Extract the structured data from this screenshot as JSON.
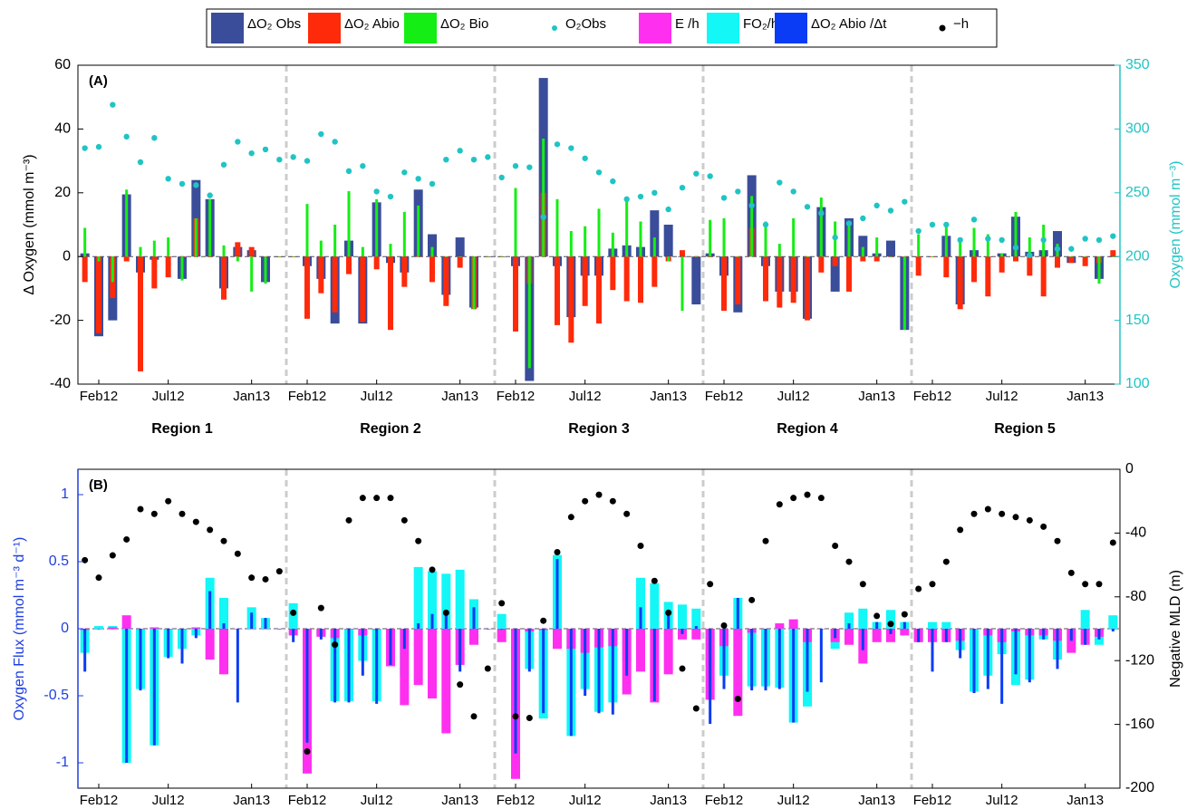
{
  "legend": {
    "items": [
      {
        "key": "dO2_obs",
        "label": "ΔO₂ Obs",
        "marker": "box",
        "color": "#3a4d9a"
      },
      {
        "key": "dO2_abio",
        "label": "ΔO₂ Abio",
        "marker": "box",
        "color": "#ff2a0a"
      },
      {
        "key": "dO2_bio",
        "label": "ΔO₂ Bio",
        "marker": "box",
        "color": "#14ee14"
      },
      {
        "key": "o2_obs",
        "label": "O₂Obs",
        "marker": "dot",
        "color": "#20c4c4"
      },
      {
        "key": "e_h",
        "label": "E /h",
        "marker": "box",
        "color": "#ff2ff0"
      },
      {
        "key": "fo2_h",
        "label": "FO₂/h",
        "marker": "box",
        "color": "#13f7f7"
      },
      {
        "key": "dabio_dt",
        "label": "ΔO₂ Abio /Δt",
        "marker": "box",
        "color": "#0a3cf5"
      },
      {
        "key": "neg_h",
        "label": "−h",
        "marker": "dot",
        "color": "#000000"
      }
    ]
  },
  "colors": {
    "obs": "#3a4d9a",
    "abio": "#ff2a0a",
    "bio": "#14ee14",
    "o2dot": "#20c4c4",
    "e_h": "#ff2ff0",
    "fo2": "#13f7f7",
    "dabio": "#0a3cf5",
    "flux_light": "#1fb0f0",
    "mld": "#000000",
    "left_axis_B": "#1f3fe0",
    "right_axis_A": "#20c4c4",
    "divider": "#cccccc"
  },
  "chart_data": [
    {
      "type": "bar",
      "panel_label": "(A)",
      "ylabel": "Δ Oxygen (mmol m⁻³)",
      "ylim": [
        -40,
        60
      ],
      "yticks": [
        -40,
        -20,
        0,
        20,
        40,
        60
      ],
      "y2label": "Oxygen (mmol m⁻³)",
      "y2lim": [
        100,
        350
      ],
      "y2ticks": [
        100,
        150,
        200,
        250,
        300,
        350
      ],
      "regions": [
        "Region 1",
        "Region 2",
        "Region 3",
        "Region 4",
        "Region 5"
      ],
      "month_ticks": [
        "Feb12",
        "Jul12",
        "Jan13"
      ],
      "months_per_region": 15,
      "series": [
        {
          "name": "ΔO₂ Obs",
          "regions": [
            [
              1,
              -25,
              -20,
              19.5,
              -5,
              -1,
              0,
              -7,
              24,
              18,
              -10,
              3,
              2,
              -8,
              0
            ],
            [
              0,
              -3,
              -7,
              -21,
              5,
              -21,
              17,
              -2,
              -5,
              21,
              7,
              -12,
              6,
              -16,
              0
            ],
            [
              0,
              -3,
              -39,
              56,
              -3,
              -19,
              -6,
              -6,
              2.5,
              3.5,
              3,
              14.5,
              10,
              0,
              -15
            ],
            [
              1,
              -6,
              -17.5,
              25.5,
              -3,
              -11,
              -11,
              -19.5,
              15.5,
              -11,
              12,
              6.5,
              1,
              5,
              -23
            ],
            [
              0,
              0,
              6.5,
              -15,
              2,
              0,
              1,
              12.5,
              1.5,
              2,
              8,
              -2,
              0,
              -7,
              0
            ]
          ]
        },
        {
          "name": "ΔO₂ Abio",
          "regions": [
            [
              -8,
              -24,
              -13,
              -1.5,
              -36,
              -10,
              -6.5,
              0,
              12,
              0,
              -13.5,
              4.5,
              3,
              0,
              0
            ],
            [
              0,
              -19.5,
              -11.5,
              -17.5,
              -5.5,
              -20.5,
              -4,
              -23,
              -9.5,
              0,
              -8,
              -15.5,
              -3.5,
              -16.5,
              0
            ],
            [
              0,
              -23.5,
              -8.5,
              20,
              -21.5,
              -27,
              -15.5,
              -21,
              -10.5,
              -14,
              -14.5,
              -9.5,
              -1.5,
              2,
              0
            ],
            [
              0,
              -17,
              -15,
              9,
              -14,
              -16,
              -14.5,
              -20,
              -5,
              -3,
              -11,
              -1.5,
              -1.5,
              0,
              0
            ],
            [
              -6,
              0,
              -6.5,
              -16.5,
              -8,
              -12.5,
              -5,
              -1.5,
              -6,
              -12.5,
              -3.5,
              -2,
              -3,
              -2,
              2
            ]
          ]
        },
        {
          "name": "ΔO₂ Bio",
          "regions": [
            [
              9,
              -1.5,
              -8,
              21,
              3,
              5,
              6,
              -7.5,
              12,
              18,
              3.5,
              -1.5,
              -11,
              -8.5,
              0
            ],
            [
              0,
              16.5,
              5,
              10,
              20.5,
              3,
              18,
              4,
              14,
              16,
              3,
              0,
              0,
              -16.5,
              0
            ],
            [
              0,
              21.5,
              -35,
              37,
              18,
              8,
              9.5,
              15,
              7.5,
              17.5,
              11,
              6,
              -1.5,
              -17,
              0
            ],
            [
              11.5,
              12,
              0,
              19,
              11,
              4,
              12,
              0,
              18.5,
              11,
              10,
              3,
              6,
              0,
              -23
            ],
            [
              7,
              0,
              10,
              5,
              9,
              7,
              1,
              14,
              6,
              10,
              4,
              0,
              0,
              -8.5,
              0
            ]
          ]
        },
        {
          "name": "O₂Obs",
          "axis": "right",
          "regions": [
            [
              285,
              286,
              319,
              294,
              274,
              293,
              261,
              257,
              256,
              248,
              272,
              290,
              281,
              284,
              276
            ],
            [
              278,
              275,
              296,
              290,
              267,
              271,
              251,
              247,
              266,
              261,
              257,
              276,
              283,
              276,
              278
            ],
            [
              262,
              271,
              270,
              231,
              288,
              285,
              277,
              266,
              259,
              245,
              247,
              250,
              237,
              254,
              265
            ],
            [
              263,
              246,
              251,
              240,
              225,
              258,
              251,
              239,
              234,
              215,
              226,
              230,
              240,
              236,
              243
            ],
            [
              220,
              225,
              225,
              213,
              229,
              214,
              213,
              207,
              201,
              213,
              206,
              206,
              214,
              213,
              216
            ]
          ]
        }
      ]
    },
    {
      "type": "bar",
      "panel_label": "(B)",
      "ylabel": "Oxygen Flux (mmol m⁻³ d⁻¹)",
      "ylim": [
        -1.2,
        1.2
      ],
      "yticks": [
        -1,
        -0.5,
        0,
        0.5,
        1
      ],
      "y2label": "Negative MLD (m)",
      "y2lim": [
        -200,
        0
      ],
      "y2ticks": [
        -200,
        -160,
        -120,
        -80,
        -40,
        0
      ],
      "month_ticks": [
        "Feb12",
        "Jul12",
        "Jan13"
      ],
      "series": [
        {
          "name": "FO₂/h",
          "regions": [
            [
              -0.18,
              0.02,
              0.02,
              -1.0,
              -0.45,
              -0.87,
              -0.21,
              -0.15,
              -0.05,
              0.38,
              0.23,
              0,
              0.16,
              0.08,
              0
            ],
            [
              0.19,
              -0.06,
              -0.05,
              -0.54,
              -0.54,
              -0.24,
              -0.54,
              -0.25,
              -0.35,
              0.46,
              0.43,
              0.41,
              0.44,
              0.22,
              0
            ],
            [
              0.11,
              -0.15,
              -0.3,
              -0.67,
              0.55,
              -0.8,
              -0.45,
              -0.62,
              -0.55,
              -0.25,
              0.38,
              0.34,
              0.2,
              0.18,
              0.15
            ],
            [
              -0.28,
              -0.35,
              0.23,
              -0.43,
              -0.43,
              -0.44,
              -0.7,
              -0.58,
              0,
              -0.15,
              0.12,
              0.15,
              0.05,
              0.14,
              0.05
            ],
            [
              -0.1,
              0.05,
              0.05,
              -0.16,
              -0.47,
              -0.35,
              -0.19,
              -0.42,
              -0.38,
              -0.08,
              -0.23,
              0,
              0.14,
              -0.12,
              0.1
            ]
          ]
        },
        {
          "name": "E /h",
          "regions": [
            [
              -0.01,
              0,
              0.01,
              0.1,
              0,
              0.01,
              0,
              0,
              0.01,
              -0.23,
              -0.34,
              0,
              0,
              0,
              0
            ],
            [
              -0.05,
              -1.08,
              -0.06,
              -0.07,
              0,
              -0.05,
              0,
              -0.28,
              -0.57,
              -0.42,
              -0.52,
              -0.78,
              -0.27,
              -0.12,
              0
            ],
            [
              -0.1,
              -1.12,
              -0.02,
              -0.01,
              -0.15,
              -0.15,
              -0.18,
              -0.14,
              -0.13,
              -0.49,
              -0.32,
              -0.55,
              -0.34,
              -0.08,
              -0.08
            ],
            [
              -0.53,
              -0.13,
              -0.65,
              -0.03,
              0,
              0.04,
              0.07,
              -0.1,
              0,
              -0.1,
              -0.12,
              -0.26,
              -0.1,
              -0.1,
              -0.05
            ],
            [
              -0.1,
              -0.1,
              -0.1,
              -0.09,
              0,
              -0.05,
              -0.1,
              -0.02,
              -0.05,
              -0.05,
              -0.09,
              -0.18,
              -0.12,
              -0.06,
              0
            ]
          ]
        },
        {
          "name": "ΔO₂ Abio /Δt",
          "regions": [
            [
              -0.32,
              0,
              0,
              -1.0,
              -0.46,
              -0.87,
              -0.22,
              -0.26,
              -0.07,
              0.28,
              0.04,
              -0.55,
              0.12,
              0.08,
              0
            ],
            [
              -0.1,
              -0.85,
              -0.08,
              -0.55,
              -0.55,
              -0.35,
              -0.56,
              -0.27,
              -0.15,
              0.04,
              0.11,
              0.1,
              -0.32,
              0.16,
              0
            ],
            [
              0,
              -0.93,
              -0.32,
              -0.63,
              0.52,
              -0.8,
              -0.5,
              -0.63,
              -0.64,
              -0.35,
              0.16,
              -0.54,
              0.12,
              -0.04,
              0.02
            ],
            [
              -0.71,
              -0.45,
              0.23,
              -0.46,
              -0.46,
              -0.45,
              -0.7,
              -0.47,
              -0.4,
              -0.07,
              0.04,
              -0.16,
              0.05,
              -0.04,
              0.05
            ],
            [
              -0.1,
              -0.32,
              -0.1,
              -0.22,
              -0.48,
              -0.45,
              -0.56,
              -0.34,
              -0.4,
              -0.08,
              -0.3,
              -0.09,
              -0.12,
              -0.08,
              -0.02
            ]
          ]
        },
        {
          "name": "−h",
          "axis": "right",
          "regions": [
            [
              -57,
              -68,
              -54,
              -44,
              -25,
              -28,
              -20,
              -28,
              -33,
              -38,
              -45,
              -53,
              -68,
              -69,
              -64
            ],
            [
              -90,
              -177,
              -87,
              -110,
              -32,
              -18,
              -18,
              -18,
              -32,
              -45,
              -63,
              -90,
              -135,
              -155,
              -125
            ],
            [
              -84,
              -155,
              -156,
              -95,
              -52,
              -30,
              -20,
              -16,
              -20,
              -28,
              -48,
              -70,
              -90,
              -125,
              -150
            ],
            [
              -72,
              -98,
              -144,
              -82,
              -45,
              -22,
              -18,
              -16,
              -18,
              -48,
              -58,
              -72,
              -92,
              -97,
              -91
            ],
            [
              -75,
              -72,
              -58,
              -38,
              -28,
              -25,
              -28,
              -30,
              -32,
              -36,
              -45,
              -65,
              -72,
              -72,
              -46
            ]
          ]
        }
      ]
    }
  ]
}
